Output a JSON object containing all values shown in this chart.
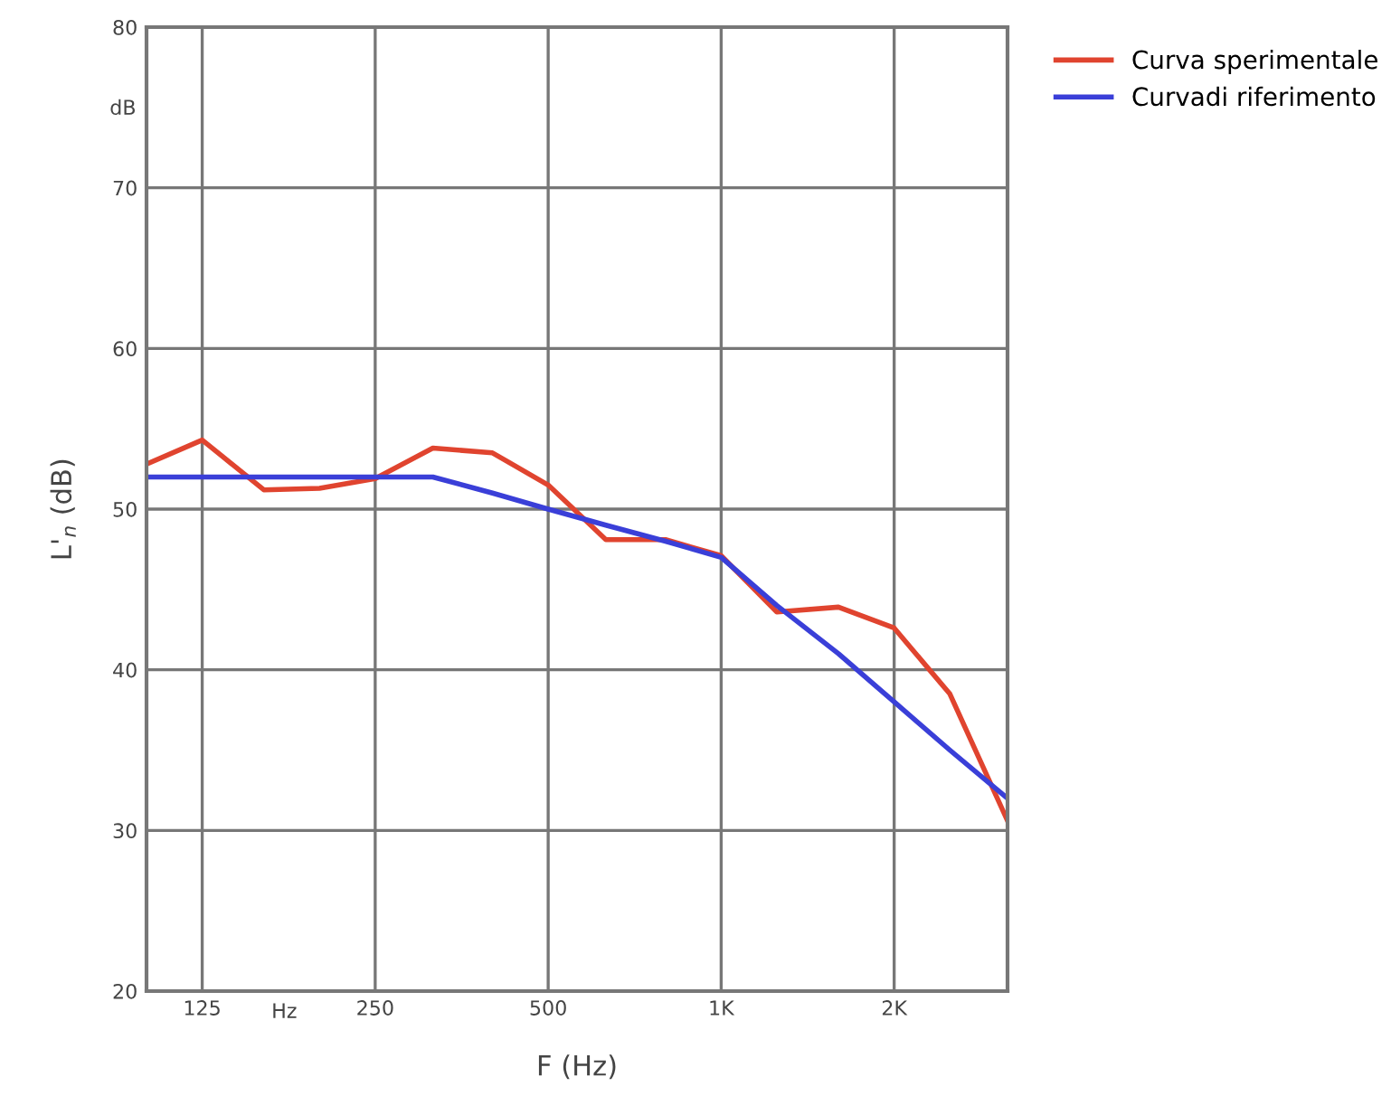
{
  "chart_data": {
    "type": "line",
    "xlabel": "F (Hz)",
    "ylabel": "L'$_{n}$ (dB)",
    "x": [
      100,
      125,
      160,
      200,
      250,
      315,
      400,
      500,
      630,
      800,
      1000,
      1250,
      1600,
      2000,
      2500,
      3150
    ],
    "series": [
      {
        "name": "Curva sperimentale",
        "color": "#e0442f",
        "values": [
          52.8,
          54.3,
          51.2,
          51.3,
          51.9,
          53.8,
          53.5,
          51.5,
          48.1,
          48.1,
          47.1,
          43.6,
          43.9,
          42.6,
          38.5,
          30.6
        ]
      },
      {
        "name": "Curvadi riferimento",
        "color": "#3a3fd8",
        "values": [
          52,
          52,
          52,
          52,
          52,
          52,
          51,
          50,
          49,
          48,
          47,
          44,
          41,
          38,
          35,
          32
        ]
      }
    ],
    "log": "x",
    "xlim": [
      100,
      3150
    ],
    "xticks": [
      125,
      250,
      500,
      {
        "value": 1000,
        "label": "1K"
      },
      {
        "value": 2000,
        "label": "2K"
      }
    ],
    "ylim": [
      20,
      80
    ],
    "yticks": [
      20,
      30,
      40,
      50,
      60,
      70,
      80
    ],
    "annotations": [
      "Hz",
      "dB"
    ],
    "grid": true,
    "legend": "top right",
    "marker": "none",
    "line_style": "solid"
  }
}
